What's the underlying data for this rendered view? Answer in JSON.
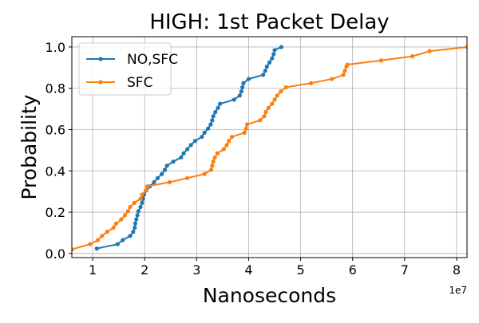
{
  "chart_data": {
    "type": "line",
    "title": "HIGH: 1st Packet Delay",
    "xlabel": "Nanoseconds",
    "ylabel": "Probability",
    "x_offset_label": "1e7",
    "xlim": [
      0.6,
      8.2
    ],
    "ylim": [
      -0.02,
      1.05
    ],
    "x_ticks": [
      1,
      2,
      3,
      4,
      5,
      6,
      7,
      8
    ],
    "x_tick_labels": [
      "1",
      "2",
      "3",
      "4",
      "5",
      "6",
      "7",
      "8"
    ],
    "y_ticks": [
      0.0,
      0.2,
      0.4,
      0.6,
      0.8,
      1.0
    ],
    "y_tick_labels": [
      "0.0",
      "0.2",
      "0.4",
      "0.6",
      "0.8",
      "1.0"
    ],
    "grid": true,
    "legend_position": "upper-left",
    "series": [
      {
        "name": "NO,SFC",
        "color": "#1f77b4",
        "marker": "circle",
        "points": [
          [
            1.08,
            0.024
          ],
          [
            1.48,
            0.045
          ],
          [
            1.58,
            0.065
          ],
          [
            1.72,
            0.085
          ],
          [
            1.78,
            0.105
          ],
          [
            1.81,
            0.125
          ],
          [
            1.82,
            0.145
          ],
          [
            1.84,
            0.165
          ],
          [
            1.86,
            0.185
          ],
          [
            1.88,
            0.205
          ],
          [
            1.92,
            0.225
          ],
          [
            1.95,
            0.245
          ],
          [
            1.97,
            0.265
          ],
          [
            1.99,
            0.285
          ],
          [
            2.03,
            0.305
          ],
          [
            2.1,
            0.325
          ],
          [
            2.18,
            0.345
          ],
          [
            2.25,
            0.365
          ],
          [
            2.33,
            0.385
          ],
          [
            2.39,
            0.405
          ],
          [
            2.43,
            0.425
          ],
          [
            2.55,
            0.445
          ],
          [
            2.7,
            0.465
          ],
          [
            2.75,
            0.485
          ],
          [
            2.82,
            0.505
          ],
          [
            2.89,
            0.525
          ],
          [
            2.97,
            0.545
          ],
          [
            3.1,
            0.565
          ],
          [
            3.15,
            0.585
          ],
          [
            3.22,
            0.605
          ],
          [
            3.27,
            0.625
          ],
          [
            3.3,
            0.645
          ],
          [
            3.32,
            0.665
          ],
          [
            3.36,
            0.685
          ],
          [
            3.41,
            0.705
          ],
          [
            3.45,
            0.725
          ],
          [
            3.72,
            0.745
          ],
          [
            3.83,
            0.765
          ],
          [
            3.86,
            0.785
          ],
          [
            3.88,
            0.805
          ],
          [
            3.9,
            0.825
          ],
          [
            4.0,
            0.845
          ],
          [
            4.28,
            0.865
          ],
          [
            4.32,
            0.885
          ],
          [
            4.35,
            0.905
          ],
          [
            4.4,
            0.925
          ],
          [
            4.45,
            0.945
          ],
          [
            4.48,
            0.965
          ],
          [
            4.5,
            0.985
          ],
          [
            4.63,
            1.0
          ]
        ]
      },
      {
        "name": "SFC",
        "color": "#ff7f0e",
        "marker": "circle",
        "points": [
          [
            0.6,
            0.02
          ],
          [
            0.95,
            0.045
          ],
          [
            1.1,
            0.065
          ],
          [
            1.18,
            0.085
          ],
          [
            1.28,
            0.105
          ],
          [
            1.4,
            0.125
          ],
          [
            1.45,
            0.145
          ],
          [
            1.55,
            0.165
          ],
          [
            1.62,
            0.185
          ],
          [
            1.68,
            0.205
          ],
          [
            1.72,
            0.225
          ],
          [
            1.8,
            0.245
          ],
          [
            1.92,
            0.265
          ],
          [
            1.95,
            0.285
          ],
          [
            2.02,
            0.305
          ],
          [
            2.05,
            0.325
          ],
          [
            2.48,
            0.345
          ],
          [
            2.82,
            0.365
          ],
          [
            3.15,
            0.385
          ],
          [
            3.28,
            0.405
          ],
          [
            3.3,
            0.425
          ],
          [
            3.32,
            0.445
          ],
          [
            3.35,
            0.465
          ],
          [
            3.4,
            0.485
          ],
          [
            3.52,
            0.505
          ],
          [
            3.58,
            0.525
          ],
          [
            3.62,
            0.545
          ],
          [
            3.68,
            0.565
          ],
          [
            3.92,
            0.585
          ],
          [
            3.95,
            0.605
          ],
          [
            3.97,
            0.625
          ],
          [
            4.22,
            0.645
          ],
          [
            4.3,
            0.665
          ],
          [
            4.33,
            0.685
          ],
          [
            4.38,
            0.705
          ],
          [
            4.45,
            0.725
          ],
          [
            4.5,
            0.745
          ],
          [
            4.55,
            0.765
          ],
          [
            4.62,
            0.785
          ],
          [
            4.72,
            0.805
          ],
          [
            5.2,
            0.825
          ],
          [
            5.6,
            0.845
          ],
          [
            5.82,
            0.865
          ],
          [
            5.85,
            0.885
          ],
          [
            5.88,
            0.905
          ],
          [
            5.9,
            0.915
          ],
          [
            6.55,
            0.935
          ],
          [
            7.15,
            0.955
          ],
          [
            7.48,
            0.98
          ],
          [
            8.2,
            1.0
          ]
        ]
      }
    ]
  }
}
